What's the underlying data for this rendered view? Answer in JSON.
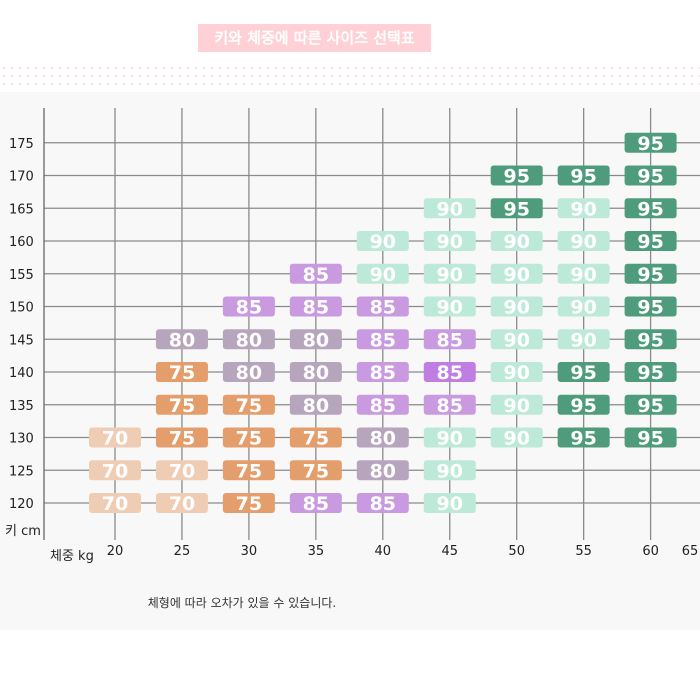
{
  "title": "키와 체중에 따른 사이즈 선택표",
  "note": "체형에 따라 오차가 있을 수 있습니다.",
  "chart_data": {
    "type": "table",
    "title": "키와 체중에 따른 사이즈 선택표",
    "xlabel": "체중 kg",
    "ylabel": "키 cm",
    "x_ticks": [
      20,
      25,
      30,
      35,
      40,
      45,
      50,
      55,
      60,
      65
    ],
    "y_ticks": [
      120,
      125,
      130,
      135,
      140,
      145,
      150,
      155,
      160,
      165,
      170,
      175
    ],
    "grid": true,
    "size_colors": {
      "70": "#efcdb5",
      "75": "#e49e6c",
      "80": "#b6a5bd",
      "85": "#c99ae0",
      "90": "#bde9d8",
      "95": "#4e9c7c"
    },
    "highlight_color": "#c07de2",
    "cells": [
      {
        "weight": 20,
        "height": 130,
        "size": "70"
      },
      {
        "weight": 20,
        "height": 125,
        "size": "70"
      },
      {
        "weight": 20,
        "height": 120,
        "size": "70"
      },
      {
        "weight": 25,
        "height": 145,
        "size": "80"
      },
      {
        "weight": 25,
        "height": 140,
        "size": "75"
      },
      {
        "weight": 25,
        "height": 135,
        "size": "75"
      },
      {
        "weight": 25,
        "height": 130,
        "size": "75"
      },
      {
        "weight": 25,
        "height": 125,
        "size": "70"
      },
      {
        "weight": 25,
        "height": 120,
        "size": "70"
      },
      {
        "weight": 30,
        "height": 150,
        "size": "85"
      },
      {
        "weight": 30,
        "height": 145,
        "size": "80"
      },
      {
        "weight": 30,
        "height": 140,
        "size": "80"
      },
      {
        "weight": 30,
        "height": 135,
        "size": "75"
      },
      {
        "weight": 30,
        "height": 130,
        "size": "75"
      },
      {
        "weight": 30,
        "height": 125,
        "size": "75"
      },
      {
        "weight": 30,
        "height": 120,
        "size": "75"
      },
      {
        "weight": 35,
        "height": 155,
        "size": "85"
      },
      {
        "weight": 35,
        "height": 150,
        "size": "85"
      },
      {
        "weight": 35,
        "height": 145,
        "size": "80"
      },
      {
        "weight": 35,
        "height": 140,
        "size": "80"
      },
      {
        "weight": 35,
        "height": 135,
        "size": "80"
      },
      {
        "weight": 35,
        "height": 130,
        "size": "75"
      },
      {
        "weight": 35,
        "height": 125,
        "size": "75"
      },
      {
        "weight": 35,
        "height": 120,
        "size": "85"
      },
      {
        "weight": 40,
        "height": 160,
        "size": "90"
      },
      {
        "weight": 40,
        "height": 155,
        "size": "90"
      },
      {
        "weight": 40,
        "height": 150,
        "size": "85"
      },
      {
        "weight": 40,
        "height": 145,
        "size": "85"
      },
      {
        "weight": 40,
        "height": 140,
        "size": "85"
      },
      {
        "weight": 40,
        "height": 135,
        "size": "85"
      },
      {
        "weight": 40,
        "height": 130,
        "size": "80"
      },
      {
        "weight": 40,
        "height": 125,
        "size": "80"
      },
      {
        "weight": 40,
        "height": 120,
        "size": "85"
      },
      {
        "weight": 45,
        "height": 165,
        "size": "90"
      },
      {
        "weight": 45,
        "height": 160,
        "size": "90"
      },
      {
        "weight": 45,
        "height": 155,
        "size": "90"
      },
      {
        "weight": 45,
        "height": 150,
        "size": "90"
      },
      {
        "weight": 45,
        "height": 145,
        "size": "85"
      },
      {
        "weight": 45,
        "height": 140,
        "size": "85",
        "highlight": true
      },
      {
        "weight": 45,
        "height": 135,
        "size": "85"
      },
      {
        "weight": 45,
        "height": 130,
        "size": "90"
      },
      {
        "weight": 45,
        "height": 125,
        "size": "90"
      },
      {
        "weight": 45,
        "height": 120,
        "size": "90"
      },
      {
        "weight": 50,
        "height": 170,
        "size": "95"
      },
      {
        "weight": 50,
        "height": 165,
        "size": "95"
      },
      {
        "weight": 50,
        "height": 160,
        "size": "90"
      },
      {
        "weight": 50,
        "height": 155,
        "size": "90"
      },
      {
        "weight": 50,
        "height": 150,
        "size": "90"
      },
      {
        "weight": 50,
        "height": 145,
        "size": "90"
      },
      {
        "weight": 50,
        "height": 140,
        "size": "90"
      },
      {
        "weight": 50,
        "height": 135,
        "size": "90"
      },
      {
        "weight": 50,
        "height": 130,
        "size": "90"
      },
      {
        "weight": 55,
        "height": 170,
        "size": "95"
      },
      {
        "weight": 55,
        "height": 165,
        "size": "90"
      },
      {
        "weight": 55,
        "height": 160,
        "size": "90"
      },
      {
        "weight": 55,
        "height": 155,
        "size": "90"
      },
      {
        "weight": 55,
        "height": 150,
        "size": "90"
      },
      {
        "weight": 55,
        "height": 145,
        "size": "90"
      },
      {
        "weight": 55,
        "height": 140,
        "size": "95"
      },
      {
        "weight": 55,
        "height": 135,
        "size": "95"
      },
      {
        "weight": 55,
        "height": 130,
        "size": "95"
      },
      {
        "weight": 60,
        "height": 175,
        "size": "95"
      },
      {
        "weight": 60,
        "height": 170,
        "size": "95"
      },
      {
        "weight": 60,
        "height": 165,
        "size": "95"
      },
      {
        "weight": 60,
        "height": 160,
        "size": "95"
      },
      {
        "weight": 60,
        "height": 155,
        "size": "95"
      },
      {
        "weight": 60,
        "height": 150,
        "size": "95"
      },
      {
        "weight": 60,
        "height": 145,
        "size": "95"
      },
      {
        "weight": 60,
        "height": 140,
        "size": "95"
      },
      {
        "weight": 60,
        "height": 135,
        "size": "95"
      },
      {
        "weight": 60,
        "height": 130,
        "size": "95"
      }
    ]
  }
}
